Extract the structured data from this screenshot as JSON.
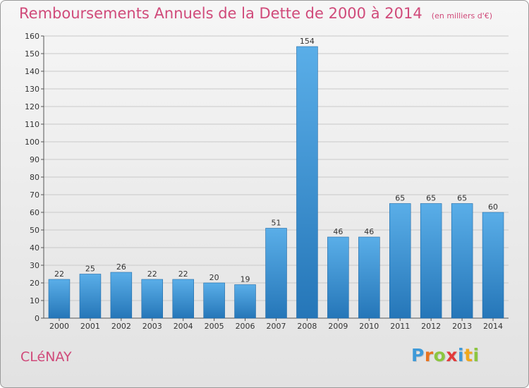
{
  "title": "Remboursements Annuels de la Dette de 2000 à 2014",
  "subtitle": "(en milliers d'€)",
  "commune": "CLéNAY",
  "brand": {
    "letters": [
      "P",
      "r",
      "o",
      "x",
      "i",
      "t",
      "i"
    ],
    "colors": [
      "#3f9ad8",
      "#e8731f",
      "#8cc63f",
      "#e23b3b",
      "#3f9ad8",
      "#f0a81c",
      "#8cc63f"
    ]
  },
  "colors": {
    "bar_top": "#5aaee8",
    "bar_bottom": "#2576b8",
    "grid": "#c9c9c9",
    "text": "#333333",
    "title": "#d04a7a"
  },
  "chart_data": {
    "type": "bar",
    "title": "Remboursements Annuels de la Dette de 2000 à 2014",
    "subtitle": "(en milliers d'€)",
    "categories": [
      "2000",
      "2001",
      "2002",
      "2003",
      "2004",
      "2005",
      "2006",
      "2007",
      "2008",
      "2009",
      "2010",
      "2011",
      "2012",
      "2013",
      "2014"
    ],
    "values": [
      22,
      25,
      26,
      22,
      22,
      20,
      19,
      51,
      154,
      46,
      46,
      65,
      65,
      65,
      60
    ],
    "ylim": [
      0,
      160
    ],
    "yticks": [
      0,
      10,
      20,
      30,
      40,
      50,
      60,
      70,
      80,
      90,
      100,
      110,
      120,
      130,
      140,
      150,
      160
    ],
    "grid": true,
    "data_labels": true
  }
}
